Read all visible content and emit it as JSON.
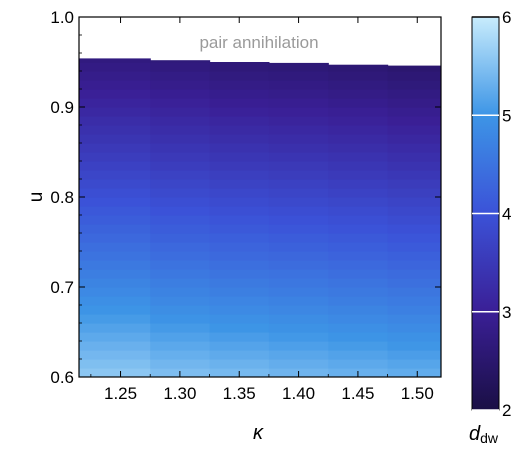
{
  "chart_data": {
    "type": "heatmap",
    "xlabel": "κ",
    "ylabel": "u",
    "x_ticks": [
      "1.25",
      "1.30",
      "1.35",
      "1.40",
      "1.45",
      "1.50"
    ],
    "y_ticks": [
      "0.6",
      "0.7",
      "0.8",
      "0.9",
      "1.0"
    ],
    "xlim": [
      1.215,
      1.52
    ],
    "ylim": [
      0.6,
      1.0
    ],
    "x_bins": [
      [
        1.215,
        1.275
      ],
      [
        1.275,
        1.325
      ],
      [
        1.325,
        1.375
      ],
      [
        1.375,
        1.425
      ],
      [
        1.425,
        1.475
      ],
      [
        1.475,
        1.52
      ]
    ],
    "u_bin_size": 0.01,
    "u_start": 0.6,
    "upper_boundary_u": [
      0.954,
      0.952,
      0.95,
      0.949,
      0.947,
      0.946
    ],
    "value_model": {
      "description": "d_dw at u = 0.6 and at upper boundary; linear in u between",
      "d_low": [
        5.6,
        5.5,
        5.45,
        5.4,
        5.35,
        5.3
      ],
      "d_high": [
        2.7,
        2.65,
        2.6,
        2.58,
        2.55,
        2.5
      ]
    },
    "region_annotation": "pair annihilation",
    "colorbar": {
      "label": "d",
      "label_sub": "dw",
      "range": [
        2,
        6
      ],
      "ticks": [
        "2",
        "3",
        "4",
        "5",
        "6"
      ],
      "colors": [
        "#1a0f45",
        "#3a1f96",
        "#3b52d8",
        "#3d95e6",
        "#c8ecfc"
      ]
    }
  }
}
